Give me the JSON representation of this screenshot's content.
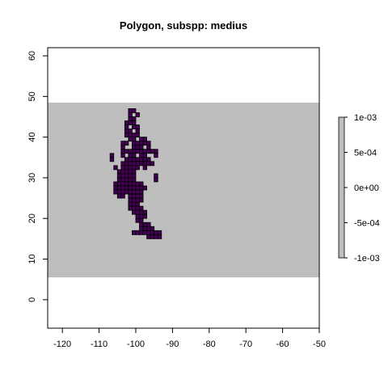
{
  "title": "Polygon, subspp: medius",
  "chart_data": {
    "type": "heatmap",
    "title": "Polygon, subspp: medius",
    "xlabel": "",
    "ylabel": "",
    "xlim": [
      -124,
      -50
    ],
    "ylim": [
      -7,
      62
    ],
    "x_ticks": [
      "-120",
      "-110",
      "-100",
      "-90",
      "-80",
      "-70",
      "-60",
      "-50"
    ],
    "y_ticks": [
      "0",
      "10",
      "20",
      "30",
      "40",
      "50",
      "60"
    ],
    "x_tick_values": [
      -120,
      -110,
      -100,
      -90,
      -80,
      -70,
      -60,
      -50
    ],
    "y_tick_values": [
      0,
      10,
      20,
      30,
      40,
      50,
      60
    ],
    "raster_extent": {
      "lon": [
        -124,
        -50
      ],
      "lat": [
        5.5,
        48.5
      ]
    },
    "background_color": "#bebebe",
    "fill_color": "#440154",
    "cell_size_deg": 1,
    "occupied_cells_lon_lat": [
      [
        -102,
        46
      ],
      [
        -101,
        46
      ],
      [
        -102,
        45
      ],
      [
        -100,
        45
      ],
      [
        -102,
        44
      ],
      [
        -101,
        44
      ],
      [
        -103,
        43
      ],
      [
        -102,
        43
      ],
      [
        -101,
        43
      ],
      [
        -103,
        42
      ],
      [
        -101,
        42
      ],
      [
        -100,
        42
      ],
      [
        -103,
        41
      ],
      [
        -102,
        41
      ],
      [
        -100,
        41
      ],
      [
        -103,
        40
      ],
      [
        -102,
        40
      ],
      [
        -101,
        40
      ],
      [
        -100,
        40
      ],
      [
        -102,
        39
      ],
      [
        -101,
        39
      ],
      [
        -99,
        39
      ],
      [
        -98,
        39
      ],
      [
        -104,
        38
      ],
      [
        -103,
        38
      ],
      [
        -101,
        38
      ],
      [
        -100,
        38
      ],
      [
        -99,
        38
      ],
      [
        -98,
        38
      ],
      [
        -97,
        38
      ],
      [
        -104,
        37
      ],
      [
        -101,
        37
      ],
      [
        -100,
        37
      ],
      [
        -99,
        37
      ],
      [
        -97,
        37
      ],
      [
        -104,
        36
      ],
      [
        -103,
        36
      ],
      [
        -102,
        36
      ],
      [
        -101,
        36
      ],
      [
        -100,
        36
      ],
      [
        -99,
        36
      ],
      [
        -98,
        36
      ],
      [
        -97,
        36
      ],
      [
        -96,
        36
      ],
      [
        -95,
        36
      ],
      [
        -107,
        35
      ],
      [
        -104,
        35
      ],
      [
        -102,
        35
      ],
      [
        -101,
        35
      ],
      [
        -99,
        35
      ],
      [
        -98,
        35
      ],
      [
        -95,
        35
      ],
      [
        -107,
        34
      ],
      [
        -103,
        34
      ],
      [
        -102,
        34
      ],
      [
        -101,
        34
      ],
      [
        -100,
        34
      ],
      [
        -99,
        34
      ],
      [
        -98,
        34
      ],
      [
        -97,
        34
      ],
      [
        -104,
        33
      ],
      [
        -103,
        33
      ],
      [
        -102,
        33
      ],
      [
        -101,
        33
      ],
      [
        -100,
        33
      ],
      [
        -99,
        33
      ],
      [
        -98,
        33
      ],
      [
        -97,
        33
      ],
      [
        -96,
        33
      ],
      [
        -106,
        32
      ],
      [
        -104,
        32
      ],
      [
        -103,
        32
      ],
      [
        -102,
        32
      ],
      [
        -101,
        32
      ],
      [
        -100,
        32
      ],
      [
        -98,
        32
      ],
      [
        -105,
        31
      ],
      [
        -104,
        31
      ],
      [
        -103,
        31
      ],
      [
        -102,
        31
      ],
      [
        -101,
        31
      ],
      [
        -105,
        30
      ],
      [
        -104,
        30
      ],
      [
        -103,
        30
      ],
      [
        -102,
        30
      ],
      [
        -101,
        30
      ],
      [
        -95,
        30
      ],
      [
        -105,
        29
      ],
      [
        -104,
        29
      ],
      [
        -103,
        29
      ],
      [
        -102,
        29
      ],
      [
        -101,
        29
      ],
      [
        -95,
        29
      ],
      [
        -106,
        28
      ],
      [
        -105,
        28
      ],
      [
        -104,
        28
      ],
      [
        -103,
        28
      ],
      [
        -102,
        28
      ],
      [
        -101,
        28
      ],
      [
        -100,
        28
      ],
      [
        -99,
        28
      ],
      [
        -106,
        27
      ],
      [
        -105,
        27
      ],
      [
        -104,
        27
      ],
      [
        -103,
        27
      ],
      [
        -102,
        27
      ],
      [
        -101,
        27
      ],
      [
        -100,
        27
      ],
      [
        -99,
        27
      ],
      [
        -98,
        27
      ],
      [
        -106,
        26
      ],
      [
        -105,
        26
      ],
      [
        -104,
        26
      ],
      [
        -103,
        26
      ],
      [
        -102,
        26
      ],
      [
        -101,
        26
      ],
      [
        -100,
        26
      ],
      [
        -99,
        26
      ],
      [
        -105,
        25
      ],
      [
        -104,
        25
      ],
      [
        -102,
        25
      ],
      [
        -101,
        25
      ],
      [
        -100,
        25
      ],
      [
        -99,
        25
      ],
      [
        -102,
        24
      ],
      [
        -101,
        24
      ],
      [
        -100,
        24
      ],
      [
        -99,
        24
      ],
      [
        -102,
        23
      ],
      [
        -101,
        23
      ],
      [
        -100,
        23
      ],
      [
        -102,
        22
      ],
      [
        -101,
        22
      ],
      [
        -100,
        22
      ],
      [
        -99,
        22
      ],
      [
        -101,
        21
      ],
      [
        -100,
        21
      ],
      [
        -99,
        21
      ],
      [
        -98,
        21
      ],
      [
        -100,
        20
      ],
      [
        -99,
        20
      ],
      [
        -98,
        20
      ],
      [
        -100,
        19
      ],
      [
        -99,
        19
      ],
      [
        -99,
        18
      ],
      [
        -98,
        18
      ],
      [
        -97,
        18
      ],
      [
        -99,
        17
      ],
      [
        -98,
        17
      ],
      [
        -97,
        17
      ],
      [
        -96,
        17
      ],
      [
        -101,
        16
      ],
      [
        -100,
        16
      ],
      [
        -99,
        16
      ],
      [
        -98,
        16
      ],
      [
        -97,
        16
      ],
      [
        -96,
        16
      ],
      [
        -95,
        16
      ],
      [
        -94,
        16
      ],
      [
        -97,
        15
      ],
      [
        -96,
        15
      ],
      [
        -95,
        15
      ],
      [
        -94,
        15
      ]
    ],
    "legend": {
      "placement": "right",
      "labels": [
        "1e-03",
        "5e-04",
        "0e+00",
        "-5e-04",
        "-1e-03"
      ],
      "values": [
        0.001,
        0.0005,
        0,
        -0.0005,
        -0.001
      ],
      "color": "#bebebe"
    }
  }
}
